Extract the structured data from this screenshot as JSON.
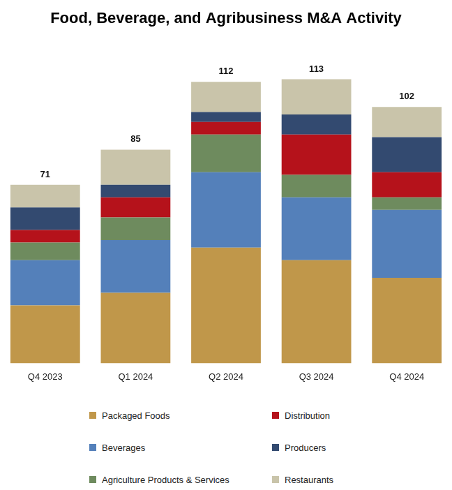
{
  "chart_data": {
    "type": "bar",
    "title": "Food, Beverage, and Agribusiness M&A Activity",
    "stacked": true,
    "tick_labels": "x",
    "grid": false,
    "legend": "bottom",
    "categories": [
      "Q4 2023",
      "Q1 2024",
      "Q2 2024",
      "Q3 2024",
      "Q4 2024"
    ],
    "totals": [
      71,
      85,
      112,
      113,
      102
    ],
    "series": [
      {
        "name": "Packaged Foods",
        "color": "#C0974A",
        "values": [
          23,
          28,
          46,
          41,
          34
        ]
      },
      {
        "name": "Beverages",
        "color": "#5480BA",
        "values": [
          18,
          21,
          30,
          25,
          27
        ]
      },
      {
        "name": "Agriculture Products & Services",
        "color": "#6E8B5E",
        "values": [
          7,
          9,
          15,
          9,
          5
        ]
      },
      {
        "name": "Distribution",
        "color": "#B5121B",
        "values": [
          5,
          8,
          5,
          16,
          10
        ]
      },
      {
        "name": "Producers",
        "color": "#334A70",
        "values": [
          9,
          5,
          4,
          8,
          14
        ]
      },
      {
        "name": "Restaurants",
        "color": "#C9C4AA",
        "values": [
          9,
          14,
          12,
          14,
          12
        ]
      }
    ]
  }
}
